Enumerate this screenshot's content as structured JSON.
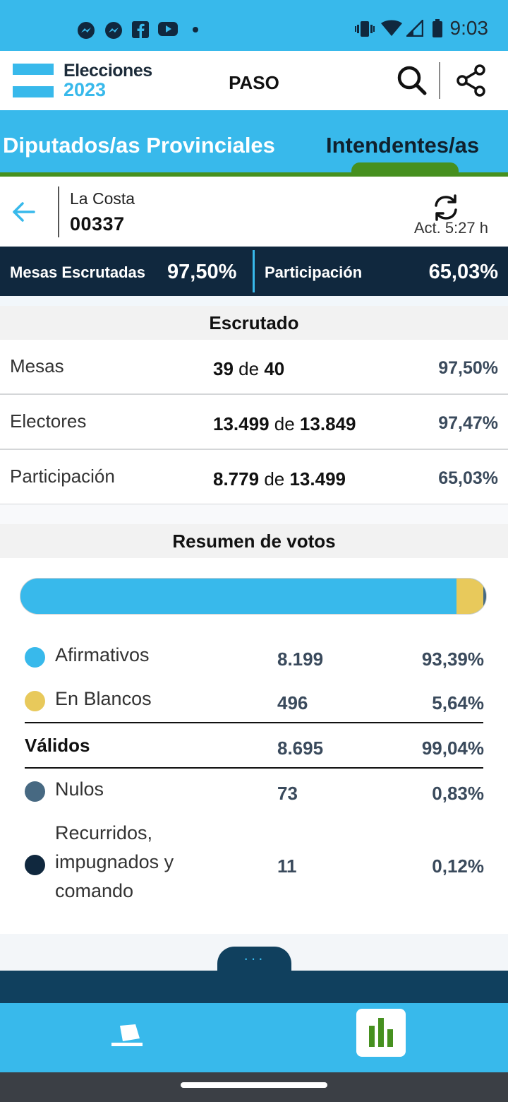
{
  "status_bar": {
    "time": "9:03",
    "notification_icons": [
      "messenger-icon",
      "messenger-icon",
      "facebook-icon",
      "youtube-icon",
      "dot-icon"
    ],
    "system_icons": [
      "vibrate-icon",
      "wifi-icon",
      "signal-icon",
      "battery-icon"
    ]
  },
  "app_bar": {
    "logo_line1": "Elecciones",
    "logo_line2": "2023",
    "title": "PASO",
    "icons": [
      "search-icon",
      "share-icon"
    ]
  },
  "tabs": [
    {
      "label": "Diputados/as Provinciales",
      "selected": false
    },
    {
      "label": "Intendentes/as",
      "selected": true
    }
  ],
  "location": {
    "name": "La Costa",
    "code": "00337",
    "update_label": "Act. 5:27 h"
  },
  "summary": {
    "mesas_label": "Mesas Escrutadas",
    "mesas_value": "97,50%",
    "participacion_label": "Participación",
    "participacion_value": "65,03%"
  },
  "escrutado": {
    "title": "Escrutado",
    "rows": [
      {
        "label": "Mesas",
        "count": "39",
        "connector": "de",
        "total": "40",
        "pct": "97,50%"
      },
      {
        "label": "Electores",
        "count": "13.499",
        "connector": "de",
        "total": "13.849",
        "pct": "97,47%"
      },
      {
        "label": "Participación",
        "count": "8.779",
        "connector": "de",
        "total": "13.499",
        "pct": "65,03%"
      }
    ]
  },
  "resumen": {
    "title": "Resumen de votos",
    "bar_segments": [
      {
        "name": "Afirmativos",
        "fraction": 0.9339,
        "color": "#38b9eb"
      },
      {
        "name": "En Blancos",
        "fraction": 0.0564,
        "color": "#e8c95b"
      },
      {
        "name": "Nulos",
        "fraction": 0.0083,
        "color": "#476982"
      },
      {
        "name": "Recurridos",
        "fraction": 0.0012,
        "color": "#10283e"
      }
    ],
    "rows": [
      {
        "label": "Afirmativos",
        "count": "8.199",
        "pct": "93,39%",
        "color": "#38b9eb"
      },
      {
        "label": "En Blancos",
        "count": "496",
        "pct": "5,64%",
        "color": "#e8c95b"
      },
      {
        "label": "Nulos",
        "count": "73",
        "pct": "0,83%",
        "color": "#476982"
      },
      {
        "label_line1": "Recurridos,",
        "label_line2": "impugnados y",
        "label_line3": "comando",
        "count": "11",
        "pct": "0,12%",
        "color": "#10283e"
      }
    ],
    "validos": {
      "label": "Válidos",
      "count": "8.695",
      "pct": "99,04%"
    }
  },
  "more_tab": "···",
  "bottom_nav": {
    "items": [
      "ballot-icon",
      "bar-chart-icon"
    ],
    "selected": "bar-chart-icon"
  },
  "colors": {
    "accent": "#38b9eb",
    "dark": "#10283e",
    "green": "#46901f"
  }
}
